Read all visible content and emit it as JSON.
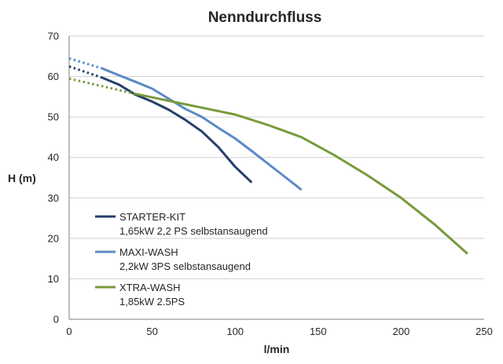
{
  "chart_data": {
    "type": "line",
    "title": "Nenndurchfluss",
    "xlabel": "l/min",
    "ylabel": "H (m)",
    "xlim": [
      0,
      250
    ],
    "ylim": [
      0,
      70
    ],
    "x_ticks": [
      "0",
      "50",
      "100",
      "150",
      "200",
      "250"
    ],
    "y_ticks": [
      "0",
      "10",
      "20",
      "30",
      "40",
      "50",
      "60",
      "70"
    ],
    "grid": "horizontal",
    "legend_position": "lower-left",
    "series": [
      {
        "name": "STARTER-KIT",
        "subtitle": "1,65kW 2,2 PS selbstansaugend",
        "color": "#243f6b",
        "dotted": [
          [
            0,
            62.5
          ],
          [
            20,
            59.7
          ]
        ],
        "points": [
          [
            20,
            59.7
          ],
          [
            30,
            58
          ],
          [
            40,
            55.5
          ],
          [
            50,
            53.8
          ],
          [
            60,
            51.8
          ],
          [
            70,
            49.3
          ],
          [
            80,
            46.4
          ],
          [
            90,
            42.5
          ],
          [
            100,
            37.7
          ],
          [
            110,
            33.8
          ]
        ]
      },
      {
        "name": "MAXI-WASH",
        "subtitle": "2,2kW 3PS selbstansaugend",
        "color": "#5b8ac6",
        "dotted": [
          [
            0,
            64.5
          ],
          [
            20,
            62
          ]
        ],
        "points": [
          [
            20,
            62
          ],
          [
            30,
            60.3
          ],
          [
            40,
            58.7
          ],
          [
            50,
            57
          ],
          [
            60,
            54.5
          ],
          [
            70,
            52
          ],
          [
            80,
            50
          ],
          [
            90,
            47.3
          ],
          [
            100,
            44.7
          ],
          [
            110,
            41.6
          ],
          [
            120,
            38.4
          ],
          [
            130,
            35.2
          ],
          [
            140,
            32
          ]
        ]
      },
      {
        "name": "XTRA-WASH",
        "subtitle": "1,85kW 2.5PS",
        "color": "#779a3c",
        "dotted": [
          [
            0,
            59.5
          ],
          [
            40,
            55.7
          ]
        ],
        "points": [
          [
            40,
            55.7
          ],
          [
            60,
            54
          ],
          [
            80,
            52.3
          ],
          [
            100,
            50.6
          ],
          [
            120,
            48
          ],
          [
            140,
            45
          ],
          [
            160,
            40.5
          ],
          [
            180,
            35.5
          ],
          [
            200,
            30
          ],
          [
            220,
            23.5
          ],
          [
            240,
            16.2
          ]
        ]
      }
    ]
  }
}
